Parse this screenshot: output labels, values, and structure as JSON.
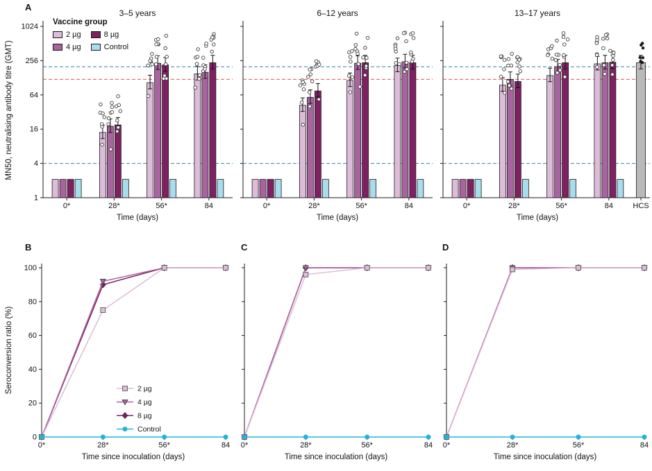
{
  "figure": {
    "panel_labels": {
      "a": "A",
      "b": "B",
      "c": "C",
      "d": "D"
    }
  },
  "palette": {
    "dose2": "#dcbcd9",
    "dose4": "#a8649f",
    "dose8": "#7e2062",
    "control_fill": "#a9dcec",
    "control_line": "#25b2d9",
    "hcs_fill": "#b9b9bc",
    "axis": "#1a1a1a",
    "scatter_edge": "#3c3c3c"
  },
  "legend_vaccine": {
    "title": "Vaccine group",
    "items": [
      {
        "label": "2 µg",
        "color": "#dcbcd9"
      },
      {
        "label": "4 µg",
        "color": "#a8649f"
      },
      {
        "label": "8 µg",
        "color": "#7e2062"
      },
      {
        "label": "Control",
        "color": "#a9dcec"
      }
    ]
  },
  "legend_series": {
    "items": [
      {
        "label": "2 µg",
        "color": "#dcbcd9",
        "marker": "square"
      },
      {
        "label": "4 µg",
        "color": "#a8649f",
        "marker": "triangle"
      },
      {
        "label": "8 µg",
        "color": "#7e2062",
        "marker": "diamond"
      },
      {
        "label": "Control",
        "color": "#25b2d9",
        "marker": "circle"
      }
    ]
  },
  "chart_data": [
    {
      "id": "A",
      "type": "bar",
      "yscale": "log",
      "ylabel": "MN50, neutralising antibody titre (GMT)",
      "xlabel": "Time (days)",
      "ylim": [
        1,
        1024
      ],
      "yticks": [
        1,
        4,
        16,
        64,
        256,
        1024
      ],
      "categories": [
        "0*",
        "28*",
        "56*",
        "84"
      ],
      "series_names": [
        "2 µg",
        "4 µg",
        "8 µg",
        "Control"
      ],
      "ref_lines": [
        {
          "value": 4,
          "color": "#3e7f9f"
        },
        {
          "value": 120,
          "color": "#e2574e"
        },
        {
          "value": 200,
          "color": "#3e7f9f"
        }
      ],
      "groups": [
        {
          "title": "3–5 years",
          "series": [
            {
              "name": "2 µg",
              "values": [
                2.1,
                14,
                105,
                150
              ]
            },
            {
              "name": "4 µg",
              "values": [
                2.1,
                18,
                230,
                160
              ]
            },
            {
              "name": "8 µg",
              "values": [
                2.1,
                19,
                215,
                235
              ]
            },
            {
              "name": "Control",
              "values": [
                2.1,
                2.1,
                2.1,
                2.1
              ]
            }
          ]
        },
        {
          "title": "6–12 years",
          "series": [
            {
              "name": "2 µg",
              "values": [
                2.1,
                42,
                115,
                210
              ]
            },
            {
              "name": "4 µg",
              "values": [
                2.1,
                58,
                230,
                245
              ]
            },
            {
              "name": "8 µg",
              "values": [
                2.1,
                75,
                235,
                235
              ]
            },
            {
              "name": "Control",
              "values": [
                2.1,
                2.1,
                2.1,
                2.1
              ]
            }
          ]
        },
        {
          "title": "13–17 years",
          "series": [
            {
              "name": "2 µg",
              "values": [
                2.1,
                95,
                140,
                225
              ]
            },
            {
              "name": "4 µg",
              "values": [
                2.1,
                120,
                200,
                235
              ]
            },
            {
              "name": "8 µg",
              "values": [
                2.1,
                110,
                235,
                240
              ]
            },
            {
              "name": "Control",
              "values": [
                2.1,
                2.1,
                2.1,
                2.1
              ]
            }
          ]
        }
      ],
      "hcs": {
        "label": "HCS",
        "value": 235
      }
    },
    {
      "id": "B",
      "type": "line",
      "age_group": "3–5 years",
      "ylabel": "Seroconversion ratio (%)",
      "xlabel": "Time since inoculation (days)",
      "ylim": [
        0,
        100
      ],
      "yticks": [
        0,
        20,
        40,
        60,
        80,
        100
      ],
      "categories": [
        "0*",
        "28*",
        "56*",
        "84"
      ],
      "series": [
        {
          "name": "2 µg",
          "marker": "square",
          "color": "#dcbcd9",
          "values": [
            0,
            75,
            100,
            100
          ]
        },
        {
          "name": "4 µg",
          "marker": "triangle",
          "color": "#a8649f",
          "values": [
            0,
            92,
            100,
            100
          ]
        },
        {
          "name": "8 µg",
          "marker": "diamond",
          "color": "#7e2062",
          "values": [
            0,
            90,
            100,
            100
          ]
        },
        {
          "name": "Control",
          "marker": "circle",
          "color": "#25b2d9",
          "values": [
            0,
            0,
            0,
            0
          ]
        }
      ]
    },
    {
      "id": "C",
      "type": "line",
      "age_group": "6–12 years",
      "xlabel": "Time since inoculation (days)",
      "ylim": [
        0,
        100
      ],
      "yticks": [
        0,
        20,
        40,
        60,
        80,
        100
      ],
      "categories": [
        "0*",
        "28*",
        "56*",
        "84"
      ],
      "series": [
        {
          "name": "2 µg",
          "marker": "square",
          "color": "#dcbcd9",
          "values": [
            0,
            96,
            100,
            100
          ]
        },
        {
          "name": "4 µg",
          "marker": "triangle",
          "color": "#a8649f",
          "values": [
            0,
            100,
            100,
            100
          ]
        },
        {
          "name": "8 µg",
          "marker": "diamond",
          "color": "#7e2062",
          "values": [
            0,
            100,
            100,
            100
          ]
        },
        {
          "name": "Control",
          "marker": "circle",
          "color": "#25b2d9",
          "values": [
            0,
            0,
            0,
            0
          ]
        }
      ]
    },
    {
      "id": "D",
      "type": "line",
      "age_group": "13–17 years",
      "xlabel": "Time since inoculation (days)",
      "ylim": [
        0,
        100
      ],
      "yticks": [
        0,
        20,
        40,
        60,
        80,
        100
      ],
      "categories": [
        "0*",
        "28*",
        "56*",
        "84"
      ],
      "series": [
        {
          "name": "2 µg",
          "marker": "square",
          "color": "#dcbcd9",
          "values": [
            0,
            99,
            100,
            100
          ]
        },
        {
          "name": "4 µg",
          "marker": "triangle",
          "color": "#a8649f",
          "values": [
            0,
            100,
            100,
            100
          ]
        },
        {
          "name": "8 µg",
          "marker": "diamond",
          "color": "#7e2062",
          "values": [
            0,
            100,
            100,
            100
          ]
        },
        {
          "name": "Control",
          "marker": "circle",
          "color": "#25b2d9",
          "values": [
            0,
            0,
            0,
            0
          ]
        }
      ]
    }
  ]
}
